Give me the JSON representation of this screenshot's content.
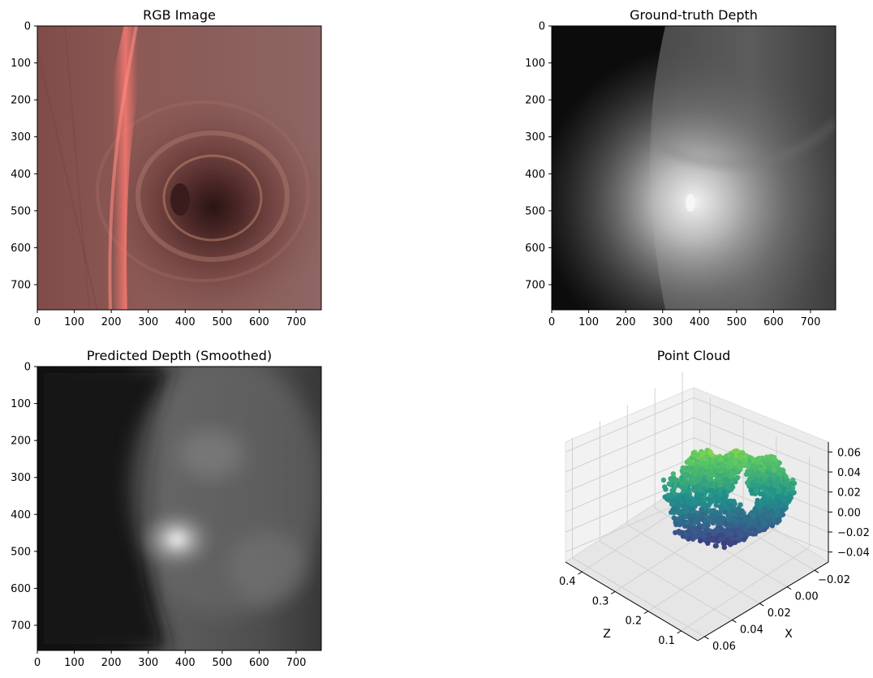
{
  "chart_data": [
    {
      "type": "image",
      "title": "RGB Image",
      "xticks": [
        0,
        100,
        200,
        300,
        400,
        500,
        600,
        700
      ],
      "yticks": [
        0,
        100,
        200,
        300,
        400,
        500,
        600,
        700
      ],
      "xlim": [
        0,
        768
      ],
      "ylim": [
        768,
        0
      ],
      "colormap": "rgb",
      "colors": {
        "base": "#8e5a56",
        "dark": "#4a2424",
        "highlight": "#f07a72"
      }
    },
    {
      "type": "image",
      "title": "Ground-truth Depth",
      "xticks": [
        0,
        100,
        200,
        300,
        400,
        500,
        600,
        700
      ],
      "yticks": [
        0,
        100,
        200,
        300,
        400,
        500,
        600,
        700
      ],
      "xlim": [
        0,
        768
      ],
      "ylim": [
        768,
        0
      ],
      "colormap": "gray"
    },
    {
      "type": "image",
      "title": "Predicted Depth (Smoothed)",
      "xticks": [
        0,
        100,
        200,
        300,
        400,
        500,
        600,
        700
      ],
      "yticks": [
        0,
        100,
        200,
        300,
        400,
        500,
        600,
        700
      ],
      "xlim": [
        0,
        768
      ],
      "ylim": [
        768,
        0
      ],
      "colormap": "gray"
    },
    {
      "type": "scatter3d",
      "title": "Point Cloud",
      "xlabel": "Z",
      "ylabel": "X",
      "z_axis_ticks": [
        -0.04,
        -0.02,
        0.0,
        0.02,
        0.04,
        0.06
      ],
      "z_axis_tick_labels": [
        "−0.04",
        "−0.02",
        "0.00",
        "0.02",
        "0.04",
        "0.06"
      ],
      "Z_ticks": [
        0.4,
        0.3,
        0.2,
        0.1
      ],
      "X_ticks": [
        -0.02,
        0.0,
        0.02,
        0.04,
        0.06
      ],
      "X_tick_labels": [
        "−0.02",
        "0.00",
        "0.02",
        "0.04",
        "0.06"
      ],
      "Z_range": [
        0.05,
        0.45
      ],
      "X_range": [
        -0.03,
        0.065
      ],
      "vertical_range": [
        -0.05,
        0.07
      ],
      "colormap": "viridis",
      "colors": [
        "#440154",
        "#3b528b",
        "#21918c",
        "#5ec962",
        "#fde725"
      ]
    }
  ]
}
